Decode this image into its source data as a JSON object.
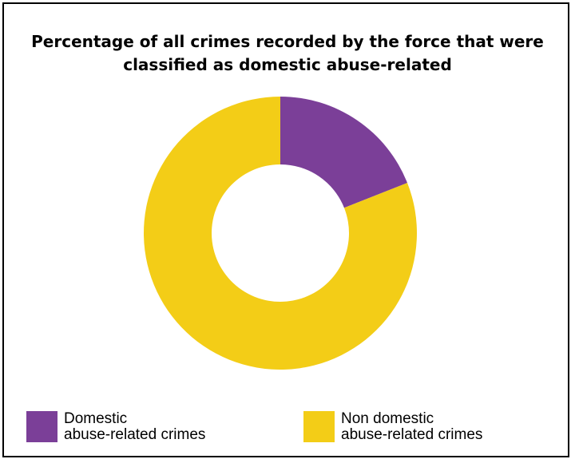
{
  "chart_data": {
    "type": "pie",
    "title": "Percentage of all crimes recorded by the force that were classified as domestic abuse-related",
    "labels": [
      "Domestic abuse-related crimes",
      "Non domestic abuse-related crimes"
    ],
    "values": [
      19,
      81
    ],
    "colors": [
      "#7b3f98",
      "#f3cd17"
    ],
    "donut": true,
    "legend": "bottom"
  },
  "legend": [
    {
      "line1": "Domestic",
      "line2": "abuse-related crimes",
      "color": "#7b3f98"
    },
    {
      "line1": "Non domestic",
      "line2": "abuse-related crimes",
      "color": "#f3cd17"
    }
  ]
}
